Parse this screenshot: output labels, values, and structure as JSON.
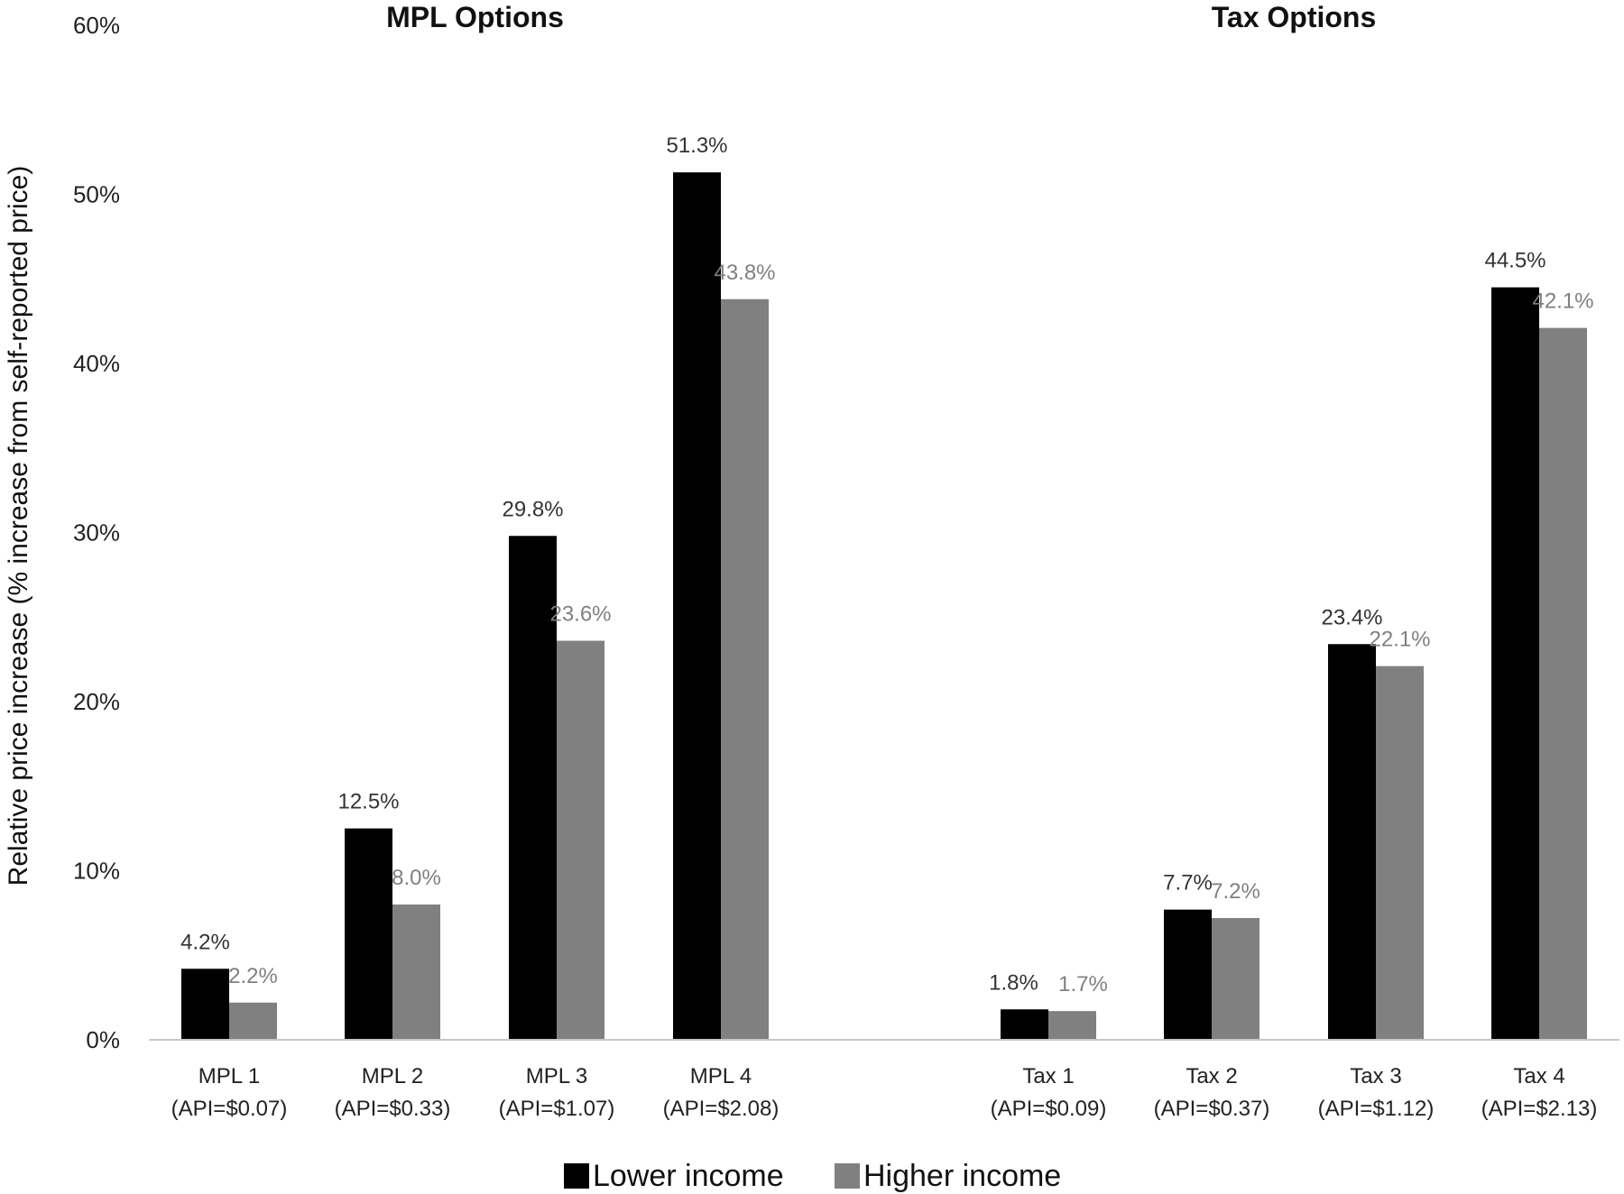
{
  "chart_data": {
    "type": "bar",
    "ylabel": "Relative price increase (% increase from self-reported price)",
    "xlabel": "",
    "ylim": [
      0,
      60
    ],
    "yticks": [
      "0%",
      "10%",
      "20%",
      "30%",
      "40%",
      "50%",
      "60%"
    ],
    "grid": false,
    "legend_position": "bottom",
    "groups": [
      {
        "title": "MPL Options",
        "categories": [
          [
            "MPL 1",
            "(API=$0.07)"
          ],
          [
            "MPL 2",
            "(API=$0.33)"
          ],
          [
            "MPL 3",
            "(API=$1.07)"
          ],
          [
            "MPL 4",
            "(API=$2.08)"
          ]
        ]
      },
      {
        "title": "Tax Options",
        "categories": [
          [
            "Tax 1",
            "(API=$0.09)"
          ],
          [
            "Tax 2",
            "(API=$0.37)"
          ],
          [
            "Tax 3",
            "(API=$1.12)"
          ],
          [
            "Tax 4",
            "(API=$2.13)"
          ]
        ]
      }
    ],
    "series": [
      {
        "name": "Lower income",
        "color": "#000000",
        "label_color": "#333333",
        "values": [
          4.2,
          12.5,
          29.8,
          51.3,
          1.8,
          7.7,
          23.4,
          44.5
        ],
        "labels": [
          "4.2%",
          "12.5%",
          "29.8%",
          "51.3%",
          "1.8%",
          "7.7%",
          "23.4%",
          "44.5%"
        ]
      },
      {
        "name": "Higher income",
        "color": "#808080",
        "label_color": "#808080",
        "values": [
          2.2,
          8.0,
          23.6,
          43.8,
          1.7,
          7.2,
          22.1,
          42.1
        ],
        "labels": [
          "2.2%",
          "8.0%",
          "23.6%",
          "43.8%",
          "1.7%",
          "7.2%",
          "22.1%",
          "42.1%"
        ]
      }
    ]
  }
}
